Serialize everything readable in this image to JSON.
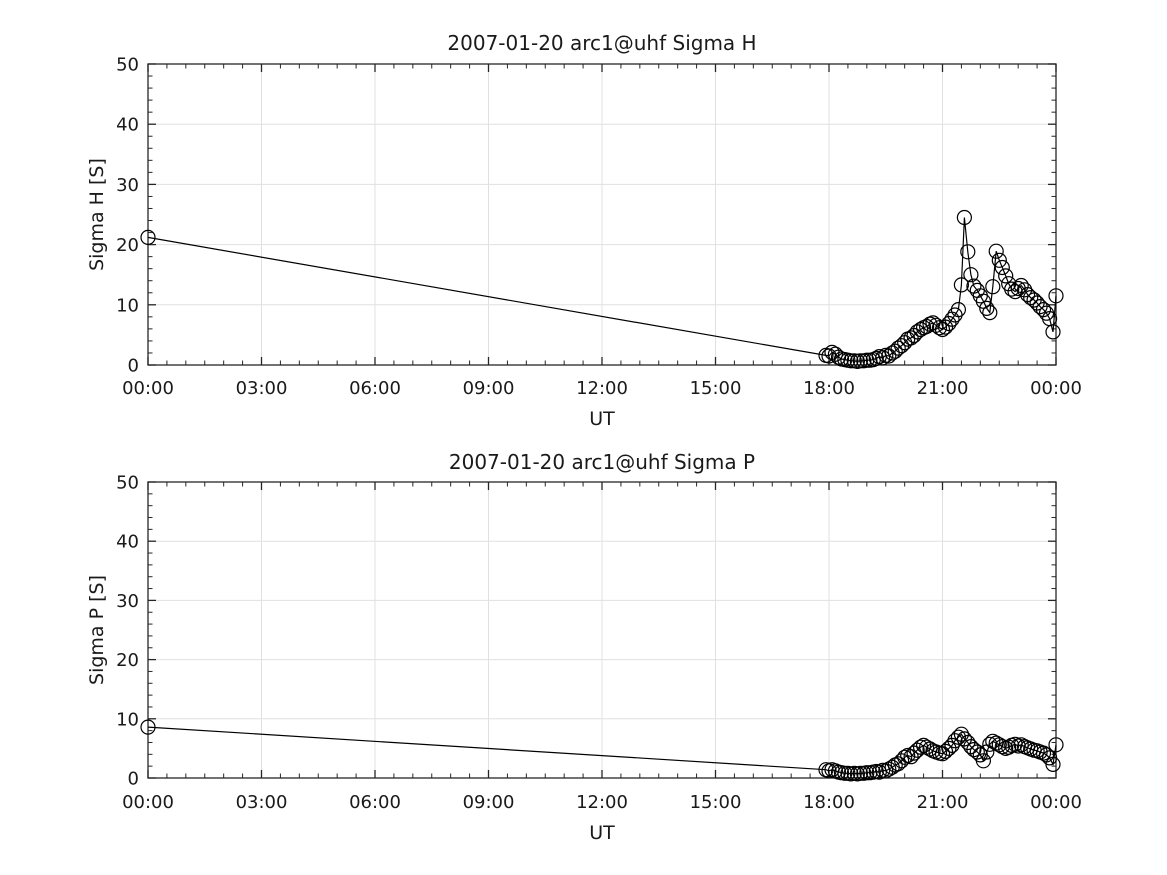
{
  "figure": {
    "background": "#ffffff",
    "axis_color": "#262626",
    "grid_color": "#e0e0e0",
    "data_color": "#000000"
  },
  "chart_data": [
    {
      "type": "line",
      "title": "2007-01-20  arc1@uhf Sigma H",
      "xlabel": "UT",
      "ylabel": "Sigma H [S]",
      "marker": "open-circle",
      "grid": true,
      "legend": "none",
      "xlim_hours": [
        0,
        24
      ],
      "ylim": [
        0,
        50
      ],
      "x_major_ticks_hours": [
        0,
        3,
        6,
        9,
        12,
        15,
        18,
        21,
        24
      ],
      "x_tick_labels": [
        "00:00",
        "03:00",
        "06:00",
        "09:00",
        "12:00",
        "15:00",
        "18:00",
        "21:00",
        "00:00"
      ],
      "x_minor_step_hours": 0.5,
      "y_major_ticks": [
        0,
        10,
        20,
        30,
        40,
        50
      ],
      "y_minor_step": 2,
      "series": [
        {
          "name": "Sigma H",
          "points_hour_value": [
            [
              0.0,
              21.2
            ],
            [
              17.92,
              1.6
            ],
            [
              18.0,
              1.5
            ],
            [
              18.08,
              2.1
            ],
            [
              18.17,
              1.8
            ],
            [
              18.25,
              1.3
            ],
            [
              18.33,
              1.0
            ],
            [
              18.42,
              0.9
            ],
            [
              18.5,
              0.8
            ],
            [
              18.58,
              0.7
            ],
            [
              18.67,
              0.7
            ],
            [
              18.75,
              0.6
            ],
            [
              18.83,
              0.7
            ],
            [
              18.92,
              0.7
            ],
            [
              19.0,
              0.8
            ],
            [
              19.08,
              0.8
            ],
            [
              19.17,
              0.9
            ],
            [
              19.25,
              1.1
            ],
            [
              19.33,
              1.4
            ],
            [
              19.42,
              1.2
            ],
            [
              19.5,
              1.6
            ],
            [
              19.58,
              1.5
            ],
            [
              19.67,
              2.0
            ],
            [
              19.75,
              2.3
            ],
            [
              19.83,
              2.8
            ],
            [
              19.92,
              3.2
            ],
            [
              20.0,
              3.7
            ],
            [
              20.08,
              4.3
            ],
            [
              20.17,
              4.5
            ],
            [
              20.25,
              4.9
            ],
            [
              20.33,
              5.5
            ],
            [
              20.42,
              5.9
            ],
            [
              20.5,
              6.2
            ],
            [
              20.58,
              6.4
            ],
            [
              20.67,
              6.8
            ],
            [
              20.75,
              7.0
            ],
            [
              20.83,
              6.6
            ],
            [
              20.92,
              6.2
            ],
            [
              21.0,
              5.9
            ],
            [
              21.08,
              6.3
            ],
            [
              21.17,
              6.9
            ],
            [
              21.25,
              7.6
            ],
            [
              21.33,
              8.3
            ],
            [
              21.42,
              9.2
            ],
            [
              21.5,
              13.3
            ],
            [
              21.58,
              24.5
            ],
            [
              21.67,
              18.8
            ],
            [
              21.75,
              15.0
            ],
            [
              21.83,
              13.1
            ],
            [
              21.92,
              12.4
            ],
            [
              22.0,
              11.5
            ],
            [
              22.08,
              10.6
            ],
            [
              22.17,
              9.4
            ],
            [
              22.25,
              8.7
            ],
            [
              22.33,
              13.0
            ],
            [
              22.42,
              18.9
            ],
            [
              22.5,
              17.4
            ],
            [
              22.58,
              16.2
            ],
            [
              22.67,
              14.8
            ],
            [
              22.75,
              13.5
            ],
            [
              22.83,
              12.6
            ],
            [
              22.92,
              12.2
            ],
            [
              23.0,
              12.7
            ],
            [
              23.08,
              13.2
            ],
            [
              23.17,
              12.5
            ],
            [
              23.25,
              11.7
            ],
            [
              23.33,
              11.2
            ],
            [
              23.42,
              10.8
            ],
            [
              23.5,
              10.3
            ],
            [
              23.58,
              9.7
            ],
            [
              23.67,
              9.2
            ],
            [
              23.75,
              8.6
            ],
            [
              23.83,
              7.7
            ],
            [
              23.92,
              5.5
            ],
            [
              24.0,
              11.5
            ]
          ]
        }
      ]
    },
    {
      "type": "line",
      "title": "2007-01-20  arc1@uhf Sigma P",
      "xlabel": "UT",
      "ylabel": "Sigma P [S]",
      "marker": "open-circle",
      "grid": true,
      "legend": "none",
      "xlim_hours": [
        0,
        24
      ],
      "ylim": [
        0,
        50
      ],
      "x_major_ticks_hours": [
        0,
        3,
        6,
        9,
        12,
        15,
        18,
        21,
        24
      ],
      "x_tick_labels": [
        "00:00",
        "03:00",
        "06:00",
        "09:00",
        "12:00",
        "15:00",
        "18:00",
        "21:00",
        "00:00"
      ],
      "x_minor_step_hours": 0.5,
      "y_major_ticks": [
        0,
        10,
        20,
        30,
        40,
        50
      ],
      "y_minor_step": 2,
      "series": [
        {
          "name": "Sigma P",
          "points_hour_value": [
            [
              0.0,
              8.6
            ],
            [
              17.92,
              1.4
            ],
            [
              18.0,
              1.2
            ],
            [
              18.08,
              1.4
            ],
            [
              18.17,
              1.2
            ],
            [
              18.25,
              1.0
            ],
            [
              18.33,
              0.9
            ],
            [
              18.42,
              0.8
            ],
            [
              18.5,
              0.8
            ],
            [
              18.58,
              0.7
            ],
            [
              18.67,
              0.8
            ],
            [
              18.75,
              0.7
            ],
            [
              18.83,
              0.8
            ],
            [
              18.92,
              0.8
            ],
            [
              19.0,
              0.9
            ],
            [
              19.08,
              0.9
            ],
            [
              19.17,
              1.0
            ],
            [
              19.25,
              1.1
            ],
            [
              19.33,
              1.0
            ],
            [
              19.42,
              1.3
            ],
            [
              19.5,
              1.2
            ],
            [
              19.58,
              1.5
            ],
            [
              19.67,
              1.8
            ],
            [
              19.75,
              2.2
            ],
            [
              19.83,
              2.4
            ],
            [
              19.92,
              2.9
            ],
            [
              20.0,
              3.5
            ],
            [
              20.08,
              3.8
            ],
            [
              20.17,
              3.6
            ],
            [
              20.25,
              4.2
            ],
            [
              20.33,
              4.7
            ],
            [
              20.42,
              5.2
            ],
            [
              20.5,
              5.5
            ],
            [
              20.58,
              5.2
            ],
            [
              20.67,
              4.9
            ],
            [
              20.75,
              4.6
            ],
            [
              20.83,
              4.4
            ],
            [
              20.92,
              4.2
            ],
            [
              21.0,
              4.1
            ],
            [
              21.08,
              4.5
            ],
            [
              21.17,
              5.0
            ],
            [
              21.25,
              5.5
            ],
            [
              21.33,
              6.3
            ],
            [
              21.42,
              6.9
            ],
            [
              21.5,
              7.4
            ],
            [
              21.58,
              6.6
            ],
            [
              21.67,
              6.0
            ],
            [
              21.75,
              5.3
            ],
            [
              21.83,
              4.8
            ],
            [
              21.92,
              4.4
            ],
            [
              22.0,
              3.9
            ],
            [
              22.08,
              2.9
            ],
            [
              22.17,
              4.4
            ],
            [
              22.25,
              5.7
            ],
            [
              22.33,
              6.2
            ],
            [
              22.42,
              5.9
            ],
            [
              22.5,
              5.6
            ],
            [
              22.58,
              5.3
            ],
            [
              22.67,
              5.0
            ],
            [
              22.75,
              5.2
            ],
            [
              22.83,
              5.5
            ],
            [
              22.92,
              5.7
            ],
            [
              23.0,
              5.4
            ],
            [
              23.08,
              5.6
            ],
            [
              23.17,
              5.3
            ],
            [
              23.25,
              5.1
            ],
            [
              23.33,
              4.9
            ],
            [
              23.42,
              4.7
            ],
            [
              23.5,
              4.6
            ],
            [
              23.58,
              4.4
            ],
            [
              23.67,
              4.2
            ],
            [
              23.75,
              3.9
            ],
            [
              23.83,
              3.4
            ],
            [
              23.92,
              2.3
            ],
            [
              24.0,
              5.6
            ]
          ]
        }
      ]
    }
  ]
}
